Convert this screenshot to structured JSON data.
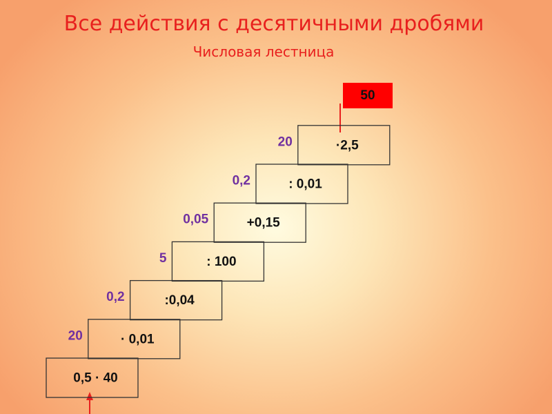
{
  "title": "Все действия с десятичными дробями",
  "subtitle": "Числовая лестница",
  "steps": [
    {
      "operation": "0,5 · 40"
    },
    {
      "result": "20",
      "operation": "· 0,01"
    },
    {
      "result": "0,2",
      "operation": ":0,04"
    },
    {
      "result": "5",
      "operation": ": 100"
    },
    {
      "result": "0,05",
      "operation": "+0,15"
    },
    {
      "result": "0,2",
      "operation": ": 0,01"
    },
    {
      "result": "20",
      "operation": "·2,5"
    }
  ],
  "answer": "50"
}
